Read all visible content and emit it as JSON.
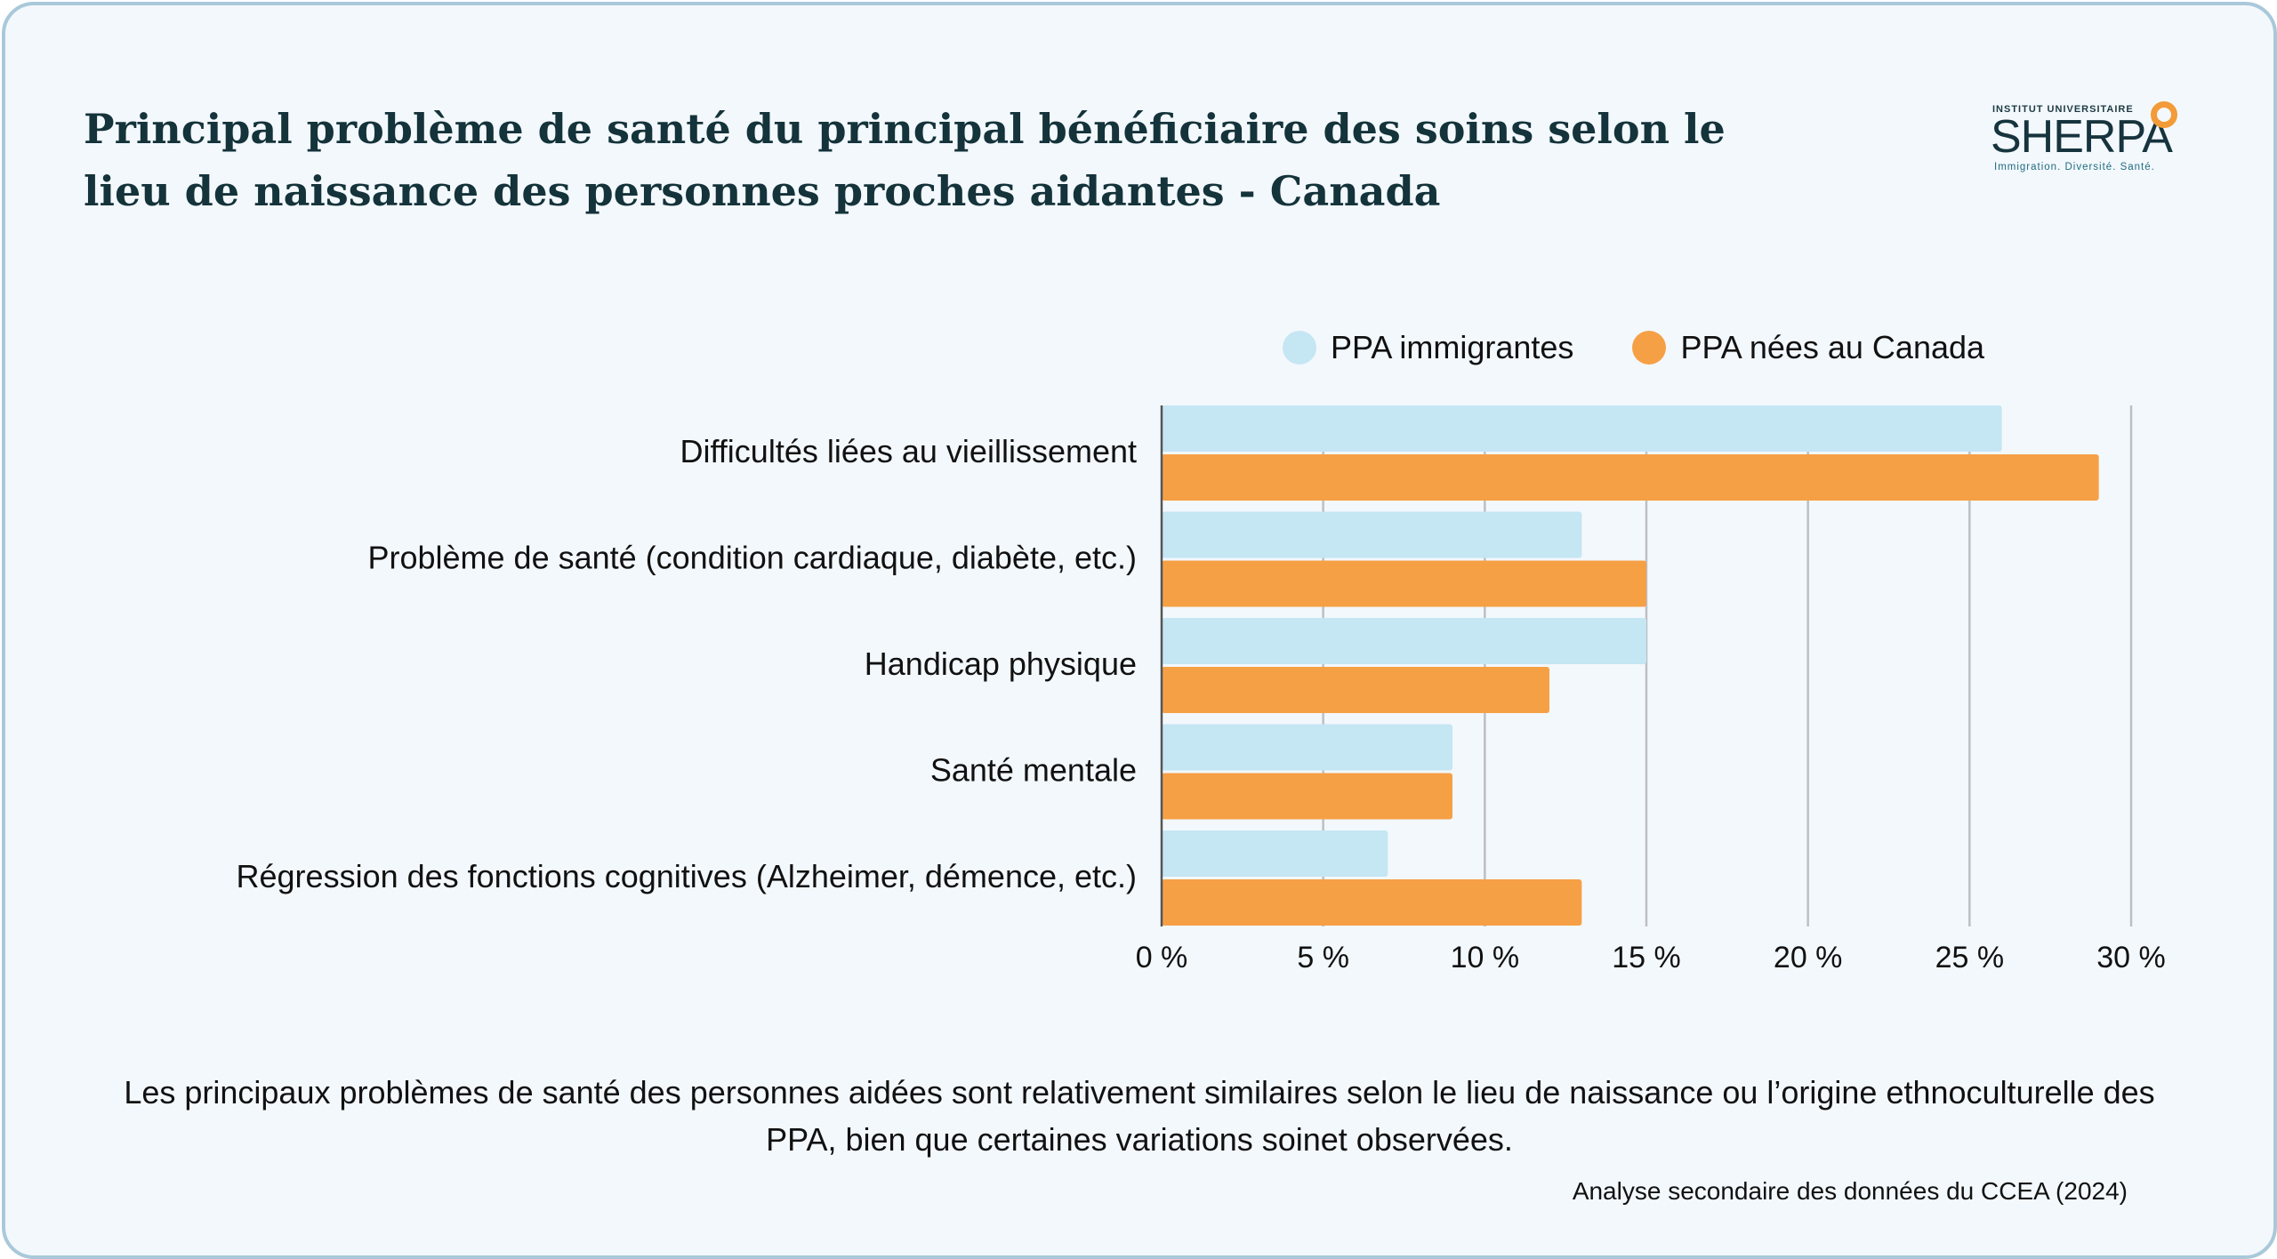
{
  "title": "Principal problème de santé du principal bénéficiaire des soins selon le lieu de naissance des personnes proches aidantes - Canada",
  "logo": {
    "top": "INSTITUT UNIVERSITAIRE",
    "name": "SHERPA",
    "tagline": "Immigration. Diversité. Santé."
  },
  "caption": "Les principaux problèmes de santé des personnes aidées sont relativement similaires selon le lieu de naissance ou l’origine ethnoculturelle des PPA, bien que certaines variations soinet observées.",
  "source": "Analyse secondaire des données du CCEA (2024)",
  "colors": {
    "immigrantes": "#c5e6f3",
    "nees_canada": "#f6a046",
    "grid": "#bdbfc2",
    "axis": "#555555"
  },
  "chart_data": {
    "type": "bar",
    "orientation": "horizontal",
    "categories": [
      "Difficultés liées au vieillissement",
      "Problème de santé (condition cardiaque, diabète, etc.)",
      "Handicap physique",
      "Santé mentale",
      "Régression des fonctions cognitives (Alzheimer, démence, etc.)"
    ],
    "series": [
      {
        "name": "PPA immigrantes",
        "values": [
          26,
          13,
          15,
          9,
          7
        ]
      },
      {
        "name": "PPA nées au Canada",
        "values": [
          29,
          15,
          12,
          9,
          13
        ]
      }
    ],
    "xticks": [
      "0 %",
      "5 %",
      "10 %",
      "15 %",
      "20 %",
      "25 %",
      "30 %"
    ],
    "xlim": [
      0,
      30
    ],
    "grid": true,
    "legend_position": "top"
  }
}
